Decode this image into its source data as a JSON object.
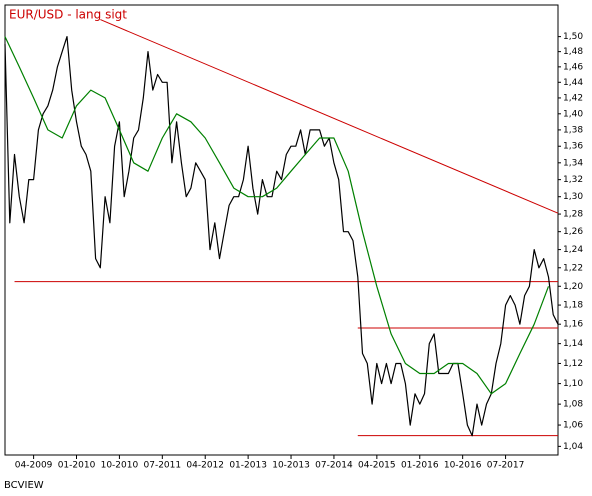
{
  "chart_data": {
    "type": "line",
    "title": "EUR/USD - lang sigt",
    "source": "BCVIEW",
    "log_scale": true,
    "xlim": [
      "10-2008",
      "06-2018"
    ],
    "xticks": [
      "04-2009",
      "01-2010",
      "10-2010",
      "07-2011",
      "04-2012",
      "01-2013",
      "10-2013",
      "07-2014",
      "04-2015",
      "01-2016",
      "10-2016",
      "07-2017"
    ],
    "ylim": [
      1.032,
      1.543
    ],
    "yticks": [
      {
        "value": 1.04,
        "label": "1,04"
      },
      {
        "value": 1.06,
        "label": "1,06"
      },
      {
        "value": 1.08,
        "label": "1,08"
      },
      {
        "value": 1.1,
        "label": "1,10"
      },
      {
        "value": 1.12,
        "label": "1,12"
      },
      {
        "value": 1.14,
        "label": "1,14"
      },
      {
        "value": 1.16,
        "label": "1,16"
      },
      {
        "value": 1.18,
        "label": "1,18"
      },
      {
        "value": 1.2,
        "label": "1,20"
      },
      {
        "value": 1.22,
        "label": "1,22"
      },
      {
        "value": 1.24,
        "label": "1,24"
      },
      {
        "value": 1.26,
        "label": "1,26"
      },
      {
        "value": 1.28,
        "label": "1,28"
      },
      {
        "value": 1.3,
        "label": "1,30"
      },
      {
        "value": 1.32,
        "label": "1,32"
      },
      {
        "value": 1.34,
        "label": "1,34"
      },
      {
        "value": 1.36,
        "label": "1,36"
      },
      {
        "value": 1.38,
        "label": "1,38"
      },
      {
        "value": 1.4,
        "label": "1,40"
      },
      {
        "value": 1.42,
        "label": "1,42"
      },
      {
        "value": 1.44,
        "label": "1,44"
      },
      {
        "value": 1.46,
        "label": "1,46"
      },
      {
        "value": 1.48,
        "label": "1,48"
      },
      {
        "value": 1.5,
        "label": "1,50"
      }
    ],
    "series": [
      {
        "color": "#000000",
        "x": [
          "10-2008",
          "11-2008",
          "12-2008",
          "01-2009",
          "02-2009",
          "03-2009",
          "04-2009",
          "05-2009",
          "06-2009",
          "07-2009",
          "08-2009",
          "09-2009",
          "10-2009",
          "11-2009",
          "12-2009",
          "01-2010",
          "02-2010",
          "03-2010",
          "04-2010",
          "05-2010",
          "06-2010",
          "07-2010",
          "08-2010",
          "09-2010",
          "10-2010",
          "11-2010",
          "12-2010",
          "01-2011",
          "02-2011",
          "03-2011",
          "04-2011",
          "05-2011",
          "06-2011",
          "07-2011",
          "08-2011",
          "09-2011",
          "10-2011",
          "11-2011",
          "12-2011",
          "01-2012",
          "02-2012",
          "03-2012",
          "04-2012",
          "05-2012",
          "06-2012",
          "07-2012",
          "08-2012",
          "09-2012",
          "10-2012",
          "11-2012",
          "12-2012",
          "01-2013",
          "02-2013",
          "03-2013",
          "04-2013",
          "05-2013",
          "06-2013",
          "07-2013",
          "08-2013",
          "09-2013",
          "10-2013",
          "11-2013",
          "12-2013",
          "01-2014",
          "02-2014",
          "03-2014",
          "04-2014",
          "05-2014",
          "06-2014",
          "07-2014",
          "08-2014",
          "09-2014",
          "10-2014",
          "11-2014",
          "12-2014",
          "01-2015",
          "02-2015",
          "03-2015",
          "04-2015",
          "05-2015",
          "06-2015",
          "07-2015",
          "08-2015",
          "09-2015",
          "10-2015",
          "11-2015",
          "12-2015",
          "01-2016",
          "02-2016",
          "03-2016",
          "04-2016",
          "05-2016",
          "06-2016",
          "07-2016",
          "08-2016",
          "09-2016",
          "10-2016",
          "11-2016",
          "12-2016",
          "01-2017",
          "02-2017",
          "03-2017",
          "04-2017",
          "05-2017",
          "06-2017",
          "07-2017",
          "08-2017",
          "09-2017",
          "10-2017",
          "11-2017",
          "12-2017",
          "01-2018",
          "02-2018",
          "03-2018",
          "04-2018",
          "05-2018",
          "06-2018"
        ],
        "values": [
          1.49,
          1.27,
          1.35,
          1.3,
          1.27,
          1.32,
          1.32,
          1.38,
          1.4,
          1.41,
          1.43,
          1.46,
          1.48,
          1.5,
          1.43,
          1.39,
          1.36,
          1.35,
          1.33,
          1.23,
          1.22,
          1.3,
          1.27,
          1.36,
          1.39,
          1.3,
          1.33,
          1.37,
          1.38,
          1.42,
          1.48,
          1.43,
          1.45,
          1.44,
          1.44,
          1.34,
          1.39,
          1.34,
          1.3,
          1.31,
          1.34,
          1.33,
          1.32,
          1.24,
          1.27,
          1.23,
          1.26,
          1.29,
          1.3,
          1.3,
          1.32,
          1.36,
          1.31,
          1.28,
          1.32,
          1.3,
          1.3,
          1.33,
          1.32,
          1.35,
          1.36,
          1.36,
          1.38,
          1.35,
          1.38,
          1.38,
          1.38,
          1.36,
          1.37,
          1.34,
          1.32,
          1.26,
          1.26,
          1.25,
          1.21,
          1.13,
          1.12,
          1.08,
          1.12,
          1.1,
          1.12,
          1.1,
          1.12,
          1.12,
          1.1,
          1.06,
          1.09,
          1.08,
          1.09,
          1.14,
          1.15,
          1.11,
          1.11,
          1.11,
          1.12,
          1.12,
          1.09,
          1.06,
          1.05,
          1.08,
          1.06,
          1.08,
          1.09,
          1.12,
          1.14,
          1.18,
          1.19,
          1.18,
          1.16,
          1.19,
          1.2,
          1.24,
          1.22,
          1.23,
          1.21,
          1.17,
          1.16
        ]
      },
      {
        "color": "#008000",
        "x": [
          "10-2008",
          "01-2009",
          "04-2009",
          "07-2009",
          "10-2009",
          "01-2010",
          "04-2010",
          "07-2010",
          "10-2010",
          "01-2011",
          "04-2011",
          "07-2011",
          "10-2011",
          "01-2012",
          "04-2012",
          "07-2012",
          "10-2012",
          "01-2013",
          "04-2013",
          "07-2013",
          "10-2013",
          "01-2014",
          "04-2014",
          "07-2014",
          "10-2014",
          "01-2015",
          "04-2015",
          "07-2015",
          "10-2015",
          "01-2016",
          "04-2016",
          "07-2016",
          "10-2016",
          "01-2017",
          "04-2017",
          "07-2017",
          "10-2017",
          "01-2018",
          "04-2018"
        ],
        "values": [
          1.5,
          1.46,
          1.42,
          1.38,
          1.37,
          1.41,
          1.43,
          1.42,
          1.38,
          1.34,
          1.33,
          1.37,
          1.4,
          1.39,
          1.37,
          1.34,
          1.31,
          1.3,
          1.3,
          1.31,
          1.33,
          1.35,
          1.37,
          1.37,
          1.33,
          1.26,
          1.2,
          1.15,
          1.12,
          1.11,
          1.11,
          1.12,
          1.12,
          1.11,
          1.09,
          1.1,
          1.13,
          1.16,
          1.2
        ]
      }
    ],
    "reference_lines": [
      {
        "color": "#cc0000",
        "x": [
          "06-2010",
          "06-2018"
        ],
        "y": [
          1.523,
          1.281
        ]
      },
      {
        "color": "#cc0000",
        "x": [
          "12-2008",
          "06-2018"
        ],
        "y": [
          1.205,
          1.205
        ]
      },
      {
        "color": "#cc0000",
        "x": [
          "12-2014",
          "06-2018"
        ],
        "y": [
          1.156,
          1.156
        ]
      },
      {
        "color": "#cc0000",
        "x": [
          "12-2014",
          "06-2018"
        ],
        "y": [
          1.05,
          1.05
        ]
      }
    ]
  }
}
